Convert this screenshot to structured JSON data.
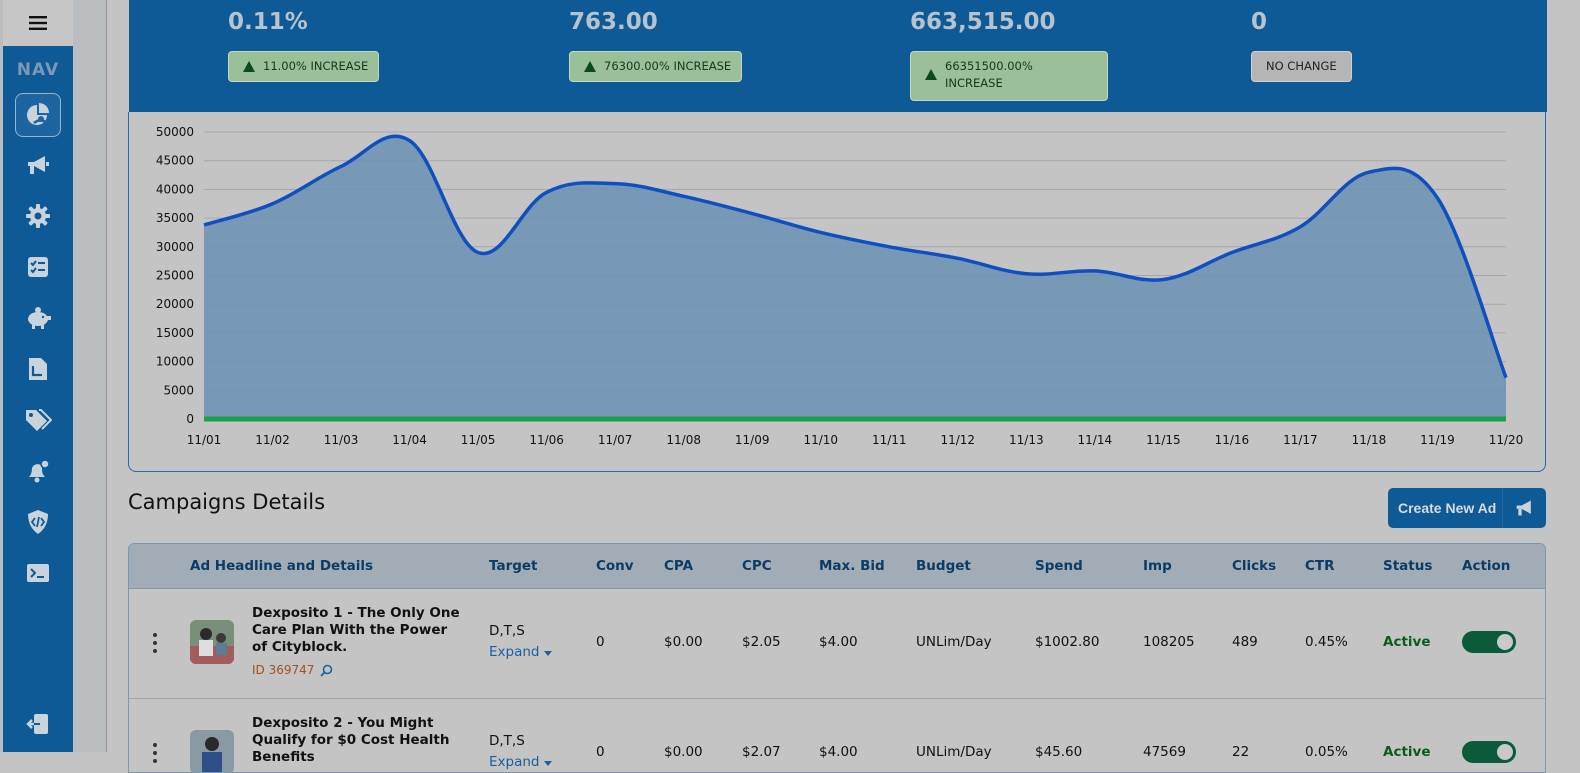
{
  "colors": {
    "nav_bg": "#0d5a97",
    "accent_line": "#0f4fc0",
    "area_fill": "#6a92b4",
    "baseline": "#1aa04a",
    "badge_green": "#9bbf99",
    "active_status": "#0b5a1c"
  },
  "nav": {
    "label": "NAV",
    "icons": [
      "menu-icon",
      "dashboard-pie-icon",
      "megaphone-icon",
      "gear-icon",
      "checklist-icon",
      "piggy-bank-icon",
      "document-icon",
      "tags-icon",
      "bell-alert-icon",
      "code-shield-icon",
      "terminal-icon",
      "logout-icon"
    ]
  },
  "stats": [
    {
      "value": "0.11%",
      "badge": "11.00% INCREASE",
      "type": "increase"
    },
    {
      "value": "763.00",
      "badge": "76300.00% INCREASE",
      "type": "increase"
    },
    {
      "value": "663,515.00",
      "badge_line1": "66351500.00%",
      "badge_line2": "INCREASE",
      "type": "increase"
    },
    {
      "value": "0",
      "badge": "NO CHANGE",
      "type": "nochange"
    }
  ],
  "chart_data": {
    "type": "area",
    "x": [
      "11/01",
      "11/02",
      "11/03",
      "11/04",
      "11/05",
      "11/06",
      "11/07",
      "11/08",
      "11/09",
      "11/10",
      "11/11",
      "11/12",
      "11/13",
      "11/14",
      "11/15",
      "11/16",
      "11/17",
      "11/18",
      "11/19",
      "11/20"
    ],
    "series": [
      {
        "values": [
          33800,
          37500,
          44000,
          48500,
          29000,
          39500,
          41000,
          38800,
          35800,
          32500,
          30000,
          28000,
          25300,
          25800,
          24300,
          29000,
          33500,
          43000,
          38500,
          7200
        ]
      },
      {
        "values": [
          0,
          0,
          0,
          0,
          0,
          0,
          0,
          0,
          0,
          0,
          0,
          0,
          0,
          0,
          0,
          0,
          0,
          0,
          0,
          0
        ]
      }
    ],
    "yticks": [
      "0",
      "5000",
      "10000",
      "15000",
      "20000",
      "25000",
      "30000",
      "35000",
      "40000",
      "45000",
      "50000"
    ],
    "ylim": [
      0,
      50000
    ],
    "grid": true,
    "legend": "none"
  },
  "campaigns": {
    "title": "Campaigns Details",
    "create_label": "Create New Ad",
    "columns": [
      "Ad Headline and Details",
      "Target",
      "Conv",
      "CPA",
      "CPC",
      "Max. Bid",
      "Budget",
      "Spend",
      "Imp",
      "Clicks",
      "CTR",
      "Status",
      "Action"
    ],
    "expand_label": "Expand",
    "rows": [
      {
        "headline": "Dexposito 1 - The Only One Care Plan With the Power of Cityblock.",
        "id": "ID 369747",
        "target": "D,T,S",
        "conv": "0",
        "cpa": "$0.00",
        "cpc": "$2.05",
        "max_bid": "$4.00",
        "budget": "UNLim/Day",
        "spend": "$1002.80",
        "imp": "108205",
        "clicks": "489",
        "ctr": "0.45%",
        "status": "Active"
      },
      {
        "headline": "Dexposito 2 - You Might Qualify for $0 Cost Health Benefits",
        "id": "",
        "target": "D,T,S",
        "conv": "0",
        "cpa": "$0.00",
        "cpc": "$2.07",
        "max_bid": "$4.00",
        "budget": "UNLim/Day",
        "spend": "$45.60",
        "imp": "47569",
        "clicks": "22",
        "ctr": "0.05%",
        "status": "Active"
      }
    ]
  }
}
